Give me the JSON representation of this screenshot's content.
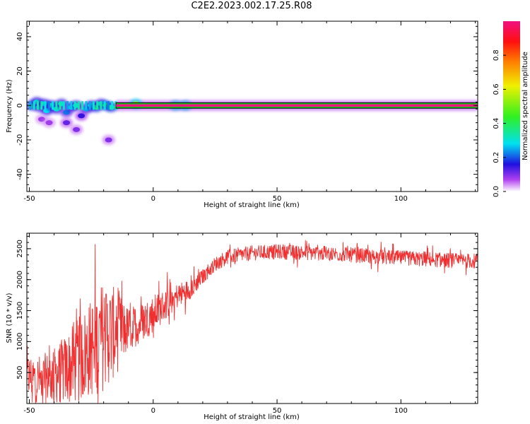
{
  "title": "C2E2.2023.002.17.25.R08",
  "chart_data": [
    {
      "type": "heatmap",
      "xlabel": "Height of straight line (km)",
      "ylabel": "Frequency (Hz)",
      "xlim": [
        -51,
        131
      ],
      "ylim": [
        -50,
        49
      ],
      "xticks": [
        -50,
        0,
        50,
        100
      ],
      "yticks": [
        -40,
        -20,
        0,
        20,
        40
      ],
      "colorbar": {
        "label": "Normalized spectral amplitude",
        "range": [
          0,
          1
        ],
        "ticks": [
          "0.0",
          "0.2",
          "0.4",
          "0.6",
          "0.8"
        ]
      },
      "ridge": {
        "frequency": 0,
        "x_start": -15,
        "x_end": 131,
        "value": 1.0
      },
      "blobs": [
        {
          "x": -49,
          "y": 0,
          "v": 0.35
        },
        {
          "x": -47,
          "y": 2,
          "v": 0.3
        },
        {
          "x": -46,
          "y": -1,
          "v": 0.25
        },
        {
          "x": -44,
          "y": 1,
          "v": 0.3
        },
        {
          "x": -43,
          "y": -3,
          "v": 0.28
        },
        {
          "x": -41,
          "y": 0,
          "v": 0.32
        },
        {
          "x": -39,
          "y": -2,
          "v": 0.3
        },
        {
          "x": -37,
          "y": 1,
          "v": 0.3
        },
        {
          "x": -35,
          "y": -4,
          "v": 0.22
        },
        {
          "x": -33,
          "y": -1,
          "v": 0.28
        },
        {
          "x": -31,
          "y": 0,
          "v": 0.3
        },
        {
          "x": -29,
          "y": -6,
          "v": 0.15
        },
        {
          "x": -27,
          "y": -2,
          "v": 0.25
        },
        {
          "x": -25,
          "y": 0,
          "v": 0.3
        },
        {
          "x": -23,
          "y": -1,
          "v": 0.35
        },
        {
          "x": -21,
          "y": 1,
          "v": 0.3
        },
        {
          "x": -19,
          "y": 0,
          "v": 0.4
        },
        {
          "x": -17,
          "y": -1,
          "v": 0.35
        },
        {
          "x": -7,
          "y": 1,
          "v": 0.55
        },
        {
          "x": 9,
          "y": 0,
          "v": 0.5
        },
        {
          "x": 13,
          "y": 0,
          "v": 0.5
        },
        {
          "x": -35,
          "y": -10,
          "v": 0.12
        },
        {
          "x": -31,
          "y": -14,
          "v": 0.1
        },
        {
          "x": -18,
          "y": -20,
          "v": 0.1
        },
        {
          "x": -45,
          "y": -8,
          "v": 0.08
        },
        {
          "x": -42,
          "y": -10,
          "v": 0.08
        }
      ]
    },
    {
      "type": "line",
      "xlabel": "Height of straight line (km)",
      "ylabel": "SNR (10 * v/v)",
      "xlim": [
        -51,
        131
      ],
      "ylim": [
        0,
        2750
      ],
      "xticks": [
        -50,
        0,
        50,
        100
      ],
      "yticks": [
        500,
        1000,
        1500,
        2000,
        2500
      ],
      "color": "#f03030",
      "series": [
        {
          "trend": {
            "x": [
              -51,
              -45,
              -40,
              -35,
              -30,
              -25,
              -20,
              -15,
              -10,
              -5,
              0,
              5,
              10,
              15,
              20,
              25,
              30,
              35,
              40,
              50,
              60,
              70,
              80,
              90,
              100,
              110,
              120,
              131
            ],
            "y": [
              450,
              380,
              450,
              550,
              700,
              900,
              1100,
              1150,
              1200,
              1300,
              1450,
              1600,
              1750,
              1850,
              2050,
              2250,
              2370,
              2400,
              2430,
              2450,
              2440,
              2420,
              2400,
              2370,
              2350,
              2330,
              2310,
              2300
            ]
          },
          "noise_amplitude": {
            "x": [
              -51,
              -40,
              -30,
              -20,
              -15,
              -10,
              0,
              10,
              20,
              30,
              131
            ],
            "y": [
              350,
              450,
              700,
              900,
              700,
              350,
              300,
              200,
              120,
              120,
              120
            ]
          }
        }
      ]
    }
  ]
}
